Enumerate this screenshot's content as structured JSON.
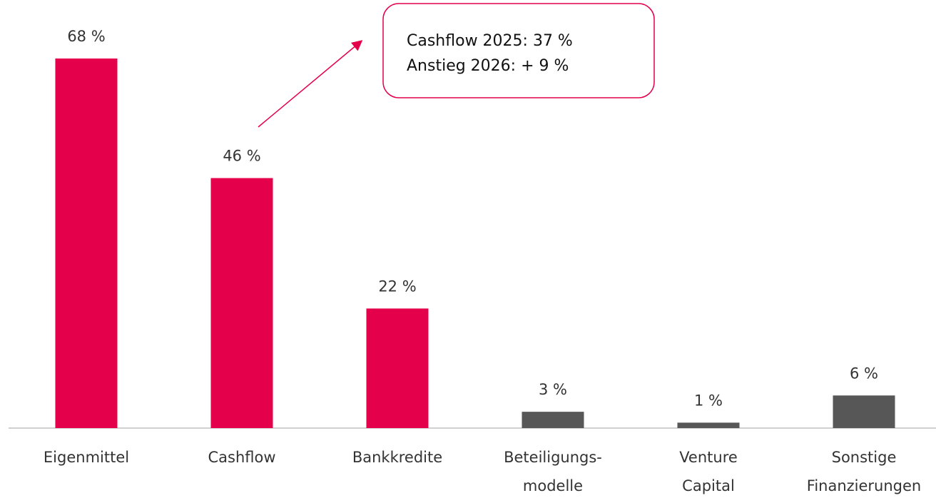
{
  "chart_data": {
    "type": "bar",
    "categories": [
      [
        "Eigenmittel"
      ],
      [
        "Cashflow"
      ],
      [
        "Bankkredite"
      ],
      [
        "Beteiligungs-",
        "modelle"
      ],
      [
        "Venture",
        "Capital"
      ],
      [
        "Sonstige",
        "Finanzierungen"
      ]
    ],
    "values": [
      68,
      46,
      22,
      3,
      1,
      6
    ],
    "value_labels": [
      "68 %",
      "46 %",
      "22 %",
      "3 %",
      "1 %",
      "6 %"
    ],
    "colors": [
      "#e4004b",
      "#e4004b",
      "#e4004b",
      "#575757",
      "#575757",
      "#575757"
    ],
    "annotation": [
      "Cashflow 2025: 37 %",
      "Anstieg 2026: + 9 %"
    ]
  }
}
